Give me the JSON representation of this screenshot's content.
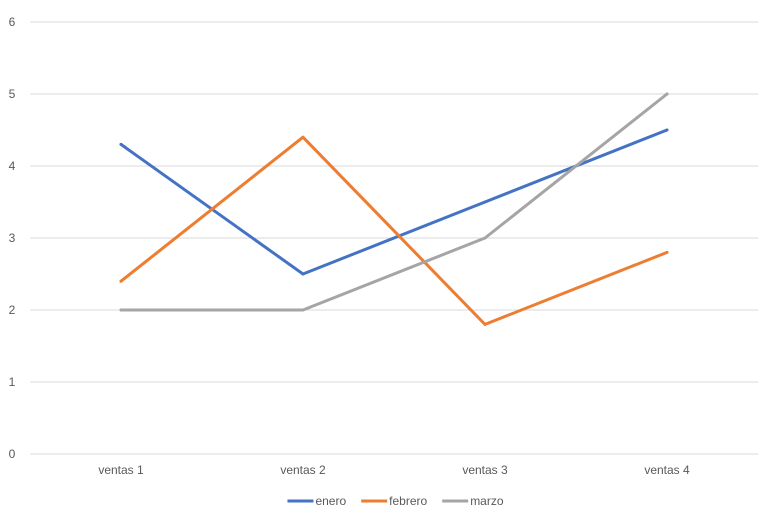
{
  "chart_data": {
    "type": "line",
    "categories": [
      "ventas 1",
      "ventas 2",
      "ventas 3",
      "ventas 4"
    ],
    "series": [
      {
        "name": "enero",
        "values": [
          4.3,
          2.5,
          3.5,
          4.5
        ],
        "color": "#4472C4"
      },
      {
        "name": "febrero",
        "values": [
          2.4,
          4.4,
          1.8,
          2.8
        ],
        "color": "#ED7D31"
      },
      {
        "name": "marzo",
        "values": [
          2,
          2,
          3,
          5
        ],
        "color": "#A5A5A5"
      }
    ],
    "ylim": [
      0,
      6
    ],
    "yticks": [
      "0",
      "1",
      "2",
      "3",
      "4",
      "5",
      "6"
    ],
    "grid": true,
    "legend_position": "bottom"
  }
}
